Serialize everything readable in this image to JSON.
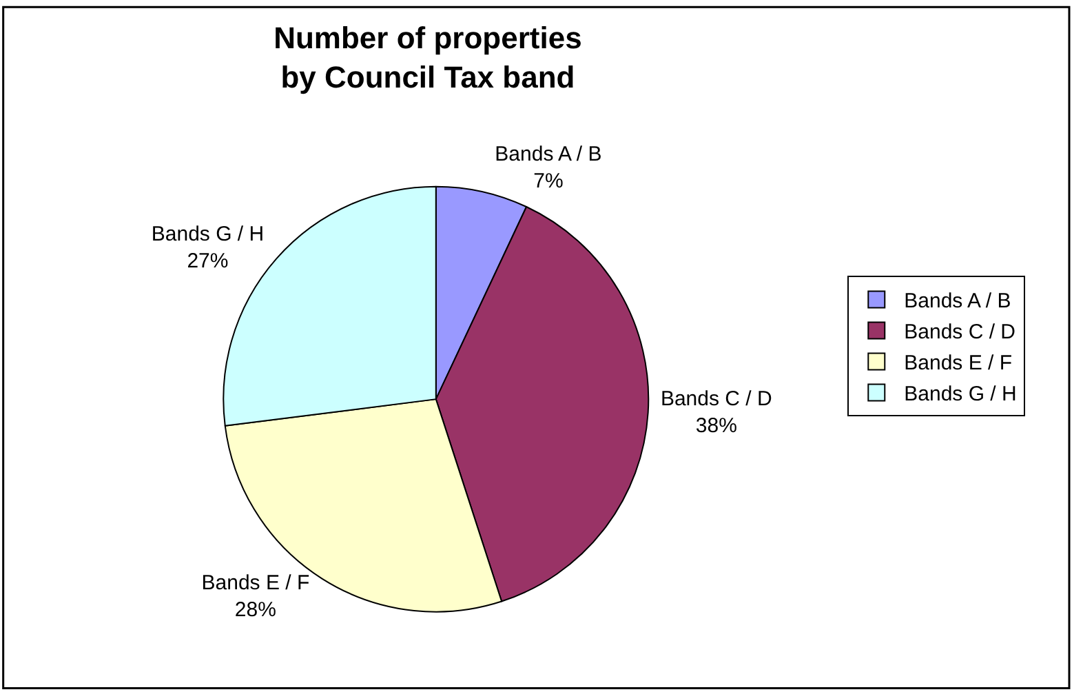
{
  "chart_data": {
    "type": "pie",
    "title": "Number of properties\nby Council Tax band",
    "categories": [
      "Bands A / B",
      "Bands C / D",
      "Bands E / F",
      "Bands G / H"
    ],
    "values": [
      7,
      38,
      28,
      27
    ],
    "value_labels": [
      "7%",
      "38%",
      "28%",
      "27%"
    ],
    "colors": [
      "#9999ff",
      "#993366",
      "#ffffcc",
      "#ccffff"
    ],
    "legend": "right"
  }
}
